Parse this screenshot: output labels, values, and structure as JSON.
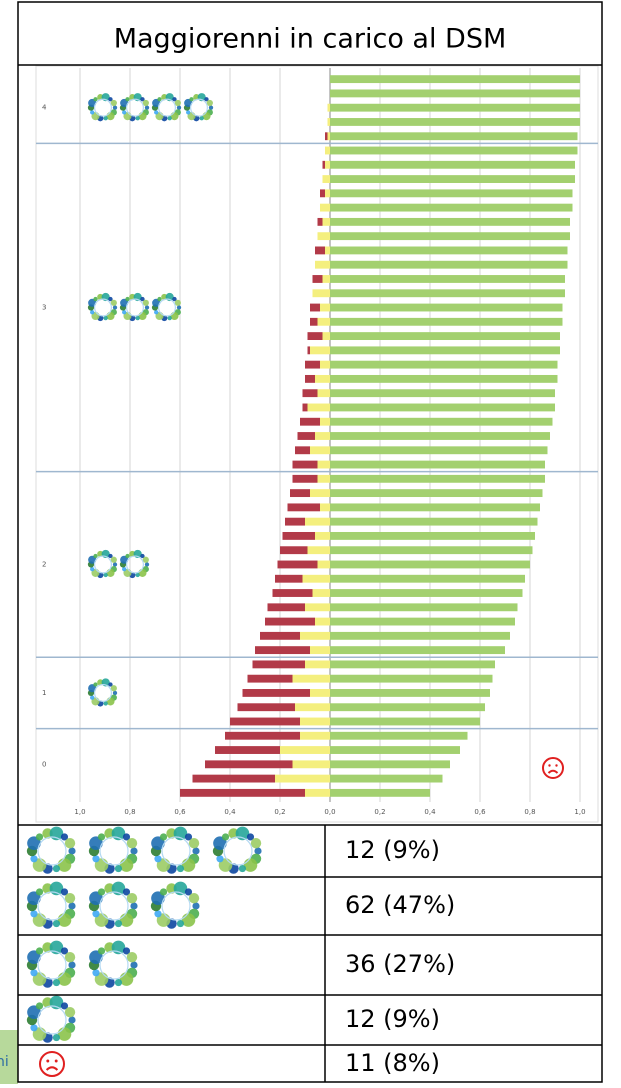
{
  "table": {
    "title": "Maggiorenni in carico al DSM",
    "rows": [
      "12 (9%)",
      "62 (47%)",
      "36 (27%)",
      "12 (9%)",
      "11 (8%)"
    ]
  },
  "side_note": "ni",
  "chart_data": {
    "type": "bar",
    "orientation": "horizontal",
    "xlim": [
      -1,
      1
    ],
    "xticks": [
      {
        "value": -1,
        "label": "1,0"
      },
      {
        "value": -0.8,
        "label": "0,8"
      },
      {
        "value": -0.6,
        "label": "0,6"
      },
      {
        "value": -0.4,
        "label": "0,4"
      },
      {
        "value": -0.2,
        "label": "0,2"
      },
      {
        "value": 0,
        "label": "0,0"
      },
      {
        "value": 0.2,
        "label": "0,2"
      },
      {
        "value": 0.4,
        "label": "0,4"
      },
      {
        "value": 0.6,
        "label": "0,6"
      },
      {
        "value": 0.8,
        "label": "0,8"
      },
      {
        "value": 1,
        "label": "1,0"
      }
    ],
    "grid": true,
    "colors": [
      "#b23a48",
      "#f4ef7e",
      "#a3d06f"
    ],
    "panels": [
      {
        "label": "4",
        "categories": [
          null,
          null,
          null,
          null,
          null
        ],
        "series": [
          {
            "values": [
              0,
              0,
              0,
              0,
              -0.01
            ]
          },
          {
            "values": [
              0,
              0,
              -0.01,
              -0.01,
              -0.01
            ]
          },
          {
            "values": [
              1.0,
              1.0,
              1.0,
              1.0,
              0.99
            ]
          }
        ]
      },
      {
        "label": "3",
        "categories": [
          null,
          null,
          null,
          null,
          null,
          null,
          null,
          null,
          null,
          null,
          null,
          null,
          null,
          null,
          null,
          null,
          null,
          null,
          null,
          null,
          null,
          null,
          null
        ],
        "series": [
          {
            "values": [
              0,
              -0.01,
              0,
              -0.02,
              0,
              -0.02,
              0,
              -0.04,
              0,
              -0.04,
              0,
              -0.04,
              -0.03,
              -0.06,
              -0.01,
              -0.06,
              -0.04,
              -0.06,
              -0.02,
              -0.08,
              -0.07,
              -0.06,
              -0.1
            ]
          },
          {
            "values": [
              -0.02,
              -0.02,
              -0.03,
              -0.02,
              -0.04,
              -0.03,
              -0.05,
              -0.02,
              -0.06,
              -0.03,
              -0.07,
              -0.04,
              -0.05,
              -0.03,
              -0.08,
              -0.04,
              -0.06,
              -0.05,
              -0.09,
              -0.04,
              -0.06,
              -0.08,
              -0.05
            ]
          },
          {
            "values": [
              0.99,
              0.98,
              0.98,
              0.97,
              0.97,
              0.96,
              0.96,
              0.95,
              0.95,
              0.94,
              0.94,
              0.93,
              0.93,
              0.92,
              0.92,
              0.91,
              0.91,
              0.9,
              0.9,
              0.89,
              0.88,
              0.87,
              0.86
            ]
          }
        ]
      },
      {
        "label": "2",
        "categories": [
          null,
          null,
          null,
          null,
          null,
          null,
          null,
          null,
          null,
          null,
          null,
          null,
          null
        ],
        "series": [
          {
            "values": [
              -0.1,
              -0.08,
              -0.13,
              -0.08,
              -0.13,
              -0.11,
              -0.16,
              -0.11,
              -0.16,
              -0.15,
              -0.2,
              -0.16,
              -0.22
            ]
          },
          {
            "values": [
              -0.05,
              -0.08,
              -0.04,
              -0.1,
              -0.06,
              -0.09,
              -0.05,
              -0.11,
              -0.07,
              -0.1,
              -0.06,
              -0.12,
              -0.08
            ]
          },
          {
            "values": [
              0.86,
              0.85,
              0.84,
              0.83,
              0.82,
              0.81,
              0.8,
              0.78,
              0.77,
              0.75,
              0.74,
              0.72,
              0.7
            ]
          }
        ]
      },
      {
        "label": "1",
        "categories": [
          null,
          null,
          null,
          null,
          null
        ],
        "series": [
          {
            "values": [
              -0.21,
              -0.18,
              -0.27,
              -0.23,
              -0.28
            ]
          },
          {
            "values": [
              -0.1,
              -0.15,
              -0.08,
              -0.14,
              -0.12
            ]
          },
          {
            "values": [
              0.66,
              0.65,
              0.64,
              0.62,
              0.6
            ]
          }
        ]
      },
      {
        "label": "0",
        "categories": [
          null,
          null,
          null,
          null,
          null
        ],
        "series": [
          {
            "values": [
              -0.3,
              -0.26,
              -0.35,
              -0.33,
              -0.5
            ]
          },
          {
            "values": [
              -0.12,
              -0.2,
              -0.15,
              -0.22,
              -0.1
            ]
          },
          {
            "values": [
              0.55,
              0.52,
              0.48,
              0.45,
              0.4
            ]
          }
        ]
      }
    ]
  }
}
